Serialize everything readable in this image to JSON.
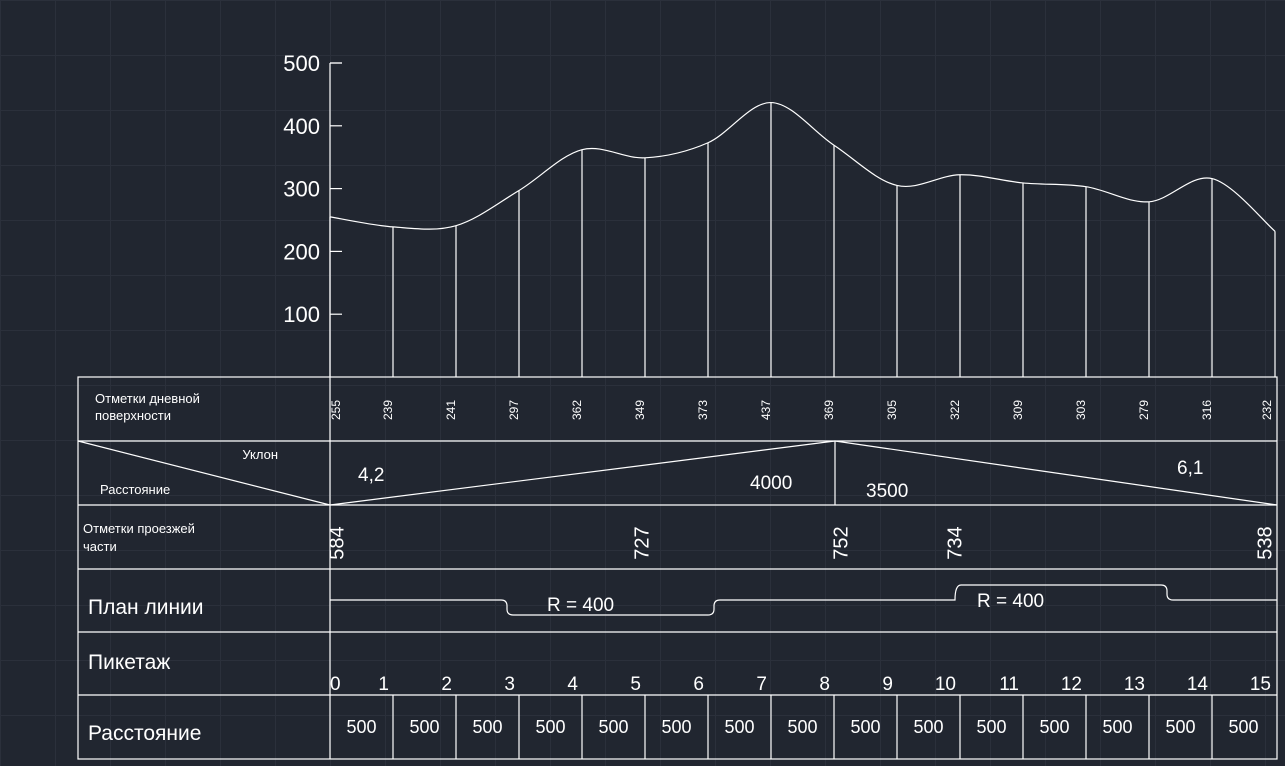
{
  "colors": {
    "background": "#212630",
    "grid": "#2b303b",
    "lines": "#ffffff"
  },
  "chart_data": {
    "type": "line",
    "x": [
      0,
      1,
      2,
      3,
      4,
      5,
      6,
      7,
      8,
      9,
      10,
      11,
      12,
      13,
      14,
      15
    ],
    "y": [
      255,
      239,
      241,
      297,
      362,
      349,
      373,
      437,
      369,
      305,
      322,
      309,
      303,
      279,
      316,
      232
    ],
    "yticks": [
      "100",
      "200",
      "300",
      "400",
      "500"
    ],
    "ylim": [
      0,
      500
    ],
    "grid": false
  },
  "table": {
    "surface": {
      "label_line1": "Отметки дневной",
      "label_line2": "поверхности",
      "values": [
        "255",
        "239",
        "241",
        "297",
        "362",
        "349",
        "373",
        "437",
        "369",
        "305",
        "322",
        "309",
        "303",
        "279",
        "316",
        "232"
      ]
    },
    "slope": {
      "label_top": "Уклон",
      "label_bottom": "Расстояние",
      "left_slope": "4,2",
      "left_distance": "4000",
      "right_distance": "3500",
      "right_slope": "6,1"
    },
    "road": {
      "label_line1": "Отметки проезжей",
      "label_line2": "части",
      "values": [
        "584",
        "727",
        "752",
        "734",
        "538"
      ]
    },
    "plan": {
      "label": "План линии",
      "curve1": "R = 400",
      "curve2": "R = 400"
    },
    "picket": {
      "label": "Пикетаж",
      "values": [
        "0",
        "1",
        "2",
        "3",
        "4",
        "5",
        "6",
        "7",
        "8",
        "9",
        "10",
        "11",
        "12",
        "13",
        "14",
        "15"
      ]
    },
    "distance": {
      "label": "Расстояние",
      "values": [
        "500",
        "500",
        "500",
        "500",
        "500",
        "500",
        "500",
        "500",
        "500",
        "500",
        "500",
        "500",
        "500",
        "500",
        "500"
      ]
    }
  }
}
